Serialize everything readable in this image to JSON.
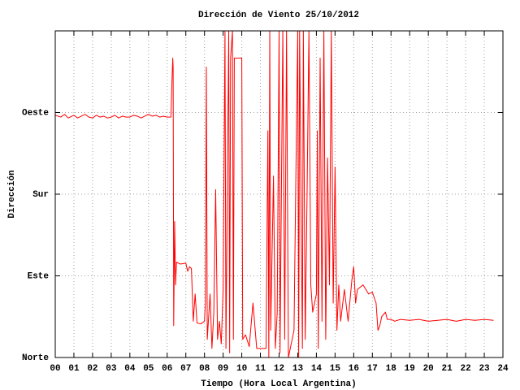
{
  "chart_data": {
    "type": "line",
    "title": "Dirección de Viento 25/10/2012",
    "xlabel": "Tiempo (Hora Local Argentina)",
    "ylabel": "Dirección",
    "color": "#ff0000",
    "grid": true,
    "xlim": [
      0,
      24
    ],
    "ylim": [
      0,
      360
    ],
    "xticks": [
      {
        "value": 0,
        "label": "00"
      },
      {
        "value": 1,
        "label": "01"
      },
      {
        "value": 2,
        "label": "02"
      },
      {
        "value": 3,
        "label": "03"
      },
      {
        "value": 4,
        "label": "04"
      },
      {
        "value": 5,
        "label": "05"
      },
      {
        "value": 6,
        "label": "06"
      },
      {
        "value": 7,
        "label": "07"
      },
      {
        "value": 8,
        "label": "08"
      },
      {
        "value": 9,
        "label": "09"
      },
      10,
      11,
      12,
      13,
      14,
      15,
      16,
      17,
      18,
      19,
      20,
      21,
      22,
      23,
      24
    ],
    "yticks": [
      {
        "value": 0,
        "label": "Norte"
      },
      {
        "value": 90,
        "label": "Este"
      },
      {
        "value": 180,
        "label": "Sur"
      },
      {
        "value": 270,
        "label": "Oeste"
      }
    ],
    "x": [
      0.0,
      0.3,
      0.5,
      0.7,
      0.9,
      1.0,
      1.2,
      1.4,
      1.6,
      1.8,
      2.0,
      2.2,
      2.4,
      2.6,
      2.8,
      3.0,
      3.2,
      3.4,
      3.6,
      3.8,
      4.0,
      4.2,
      4.4,
      4.6,
      4.8,
      5.0,
      5.2,
      5.4,
      5.6,
      5.8,
      6.0,
      6.2,
      6.25,
      6.3,
      6.32,
      6.35,
      6.4,
      6.45,
      6.5,
      6.7,
      7.0,
      7.1,
      7.2,
      7.3,
      7.4,
      7.5,
      7.6,
      7.8,
      8.0,
      8.05,
      8.1,
      8.15,
      8.3,
      8.4,
      8.5,
      8.6,
      8.7,
      8.8,
      8.9,
      9.0,
      9.1,
      9.15,
      9.3,
      9.35,
      9.4,
      9.5,
      9.55,
      9.6,
      9.7,
      10.0,
      10.05,
      10.2,
      10.4,
      10.6,
      10.8,
      11.0,
      11.3,
      11.4,
      11.45,
      11.5,
      11.55,
      11.7,
      11.8,
      11.9,
      12.0,
      12.05,
      12.2,
      12.3,
      12.4,
      12.5,
      12.6,
      12.8,
      12.9,
      13.0,
      13.05,
      13.1,
      13.2,
      13.25,
      13.3,
      13.4,
      13.5,
      13.6,
      13.7,
      13.8,
      14.0,
      14.05,
      14.1,
      14.2,
      14.3,
      14.4,
      14.5,
      14.6,
      14.7,
      14.8,
      14.9,
      15.0,
      15.1,
      15.2,
      15.3,
      15.5,
      15.7,
      15.9,
      16.0,
      16.1,
      16.2,
      16.5,
      16.8,
      17.0,
      17.2,
      17.3,
      17.4,
      17.5,
      17.7,
      17.8,
      18.0,
      18.2,
      18.5,
      19.0,
      19.5,
      20.0,
      20.5,
      21.0,
      21.5,
      22.0,
      22.5,
      23.0,
      23.5
    ],
    "values": [
      267,
      265,
      268,
      264,
      266,
      267,
      264,
      266,
      268,
      265,
      264,
      267,
      265,
      266,
      264,
      265,
      267,
      264,
      266,
      265,
      265,
      267,
      266,
      264,
      266,
      268,
      266,
      267,
      265,
      266,
      265,
      265,
      300,
      330,
      320,
      35,
      150,
      80,
      105,
      103,
      104,
      95,
      100,
      98,
      40,
      70,
      38,
      37,
      40,
      60,
      320,
      20,
      70,
      10,
      50,
      185,
      20,
      40,
      15,
      75,
      360,
      10,
      360,
      5,
      330,
      360,
      20,
      330,
      330,
      330,
      20,
      25,
      12,
      60,
      10,
      10,
      10,
      250,
      0,
      360,
      30,
      200,
      10,
      50,
      360,
      5,
      360,
      20,
      360,
      0,
      10,
      30,
      200,
      360,
      0,
      360,
      120,
      10,
      360,
      20,
      180,
      360,
      80,
      50,
      70,
      250,
      10,
      330,
      40,
      360,
      20,
      220,
      80,
      360,
      60,
      210,
      30,
      80,
      40,
      75,
      40,
      85,
      100,
      60,
      75,
      80,
      70,
      72,
      60,
      30,
      35,
      45,
      50,
      42,
      42,
      40,
      42,
      41,
      42,
      40,
      41,
      42,
      40,
      42,
      41,
      42,
      41
    ]
  }
}
